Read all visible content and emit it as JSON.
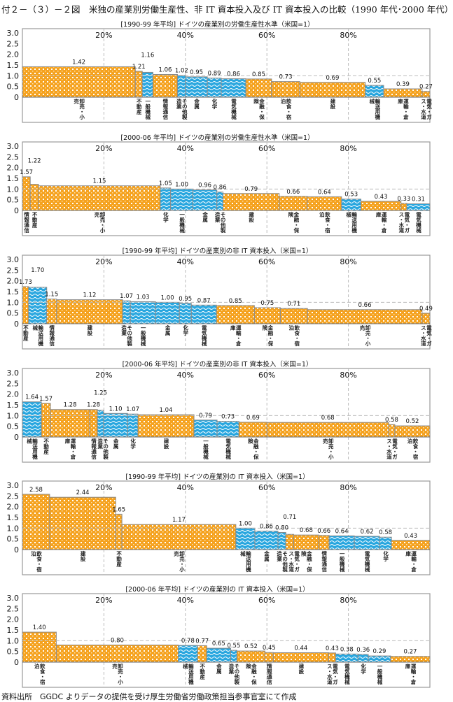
{
  "title": "付２－（３）－２図　米独の産業別労働生産性、非 IT 資本投入及び IT 資本投入の比較（1990 年代･2000 年代）",
  "footer": "資料出所　GGDC よりデータの提供を受け厚生労働省労働政策担当参事官室にて作成",
  "colors": {
    "manufacturing": "#2aa7df",
    "non_manufacturing": "#f5a21f",
    "border": "#8a8a8a",
    "grid": "#bbbbbb"
  },
  "blue_categories": [
    "一般機械",
    "その他製造業",
    "金属",
    "化学",
    "電気機械",
    "輸送用機械"
  ],
  "chart_data": [
    {
      "type": "bar",
      "title": "[1990-99 年平均] ドイツの産業別の労働生産性水準（米国=1）",
      "ylim": [
        0,
        3.0
      ],
      "yticks": [
        "0",
        "0.5",
        "1.0",
        "1.5",
        "2.0",
        "2.5",
        "3.0"
      ],
      "xticks": [
        "20%",
        "40%",
        "60%",
        "80%"
      ],
      "grid": "dashed at 1.0 and x 20% steps",
      "categories": [
        "卸売・小売",
        "不動産",
        "一般機械",
        "情報通信",
        "その他製造業",
        "金属",
        "化学",
        "電気機械",
        "金融・保険",
        "飲食・宿泊",
        "建設",
        "輸送用機械",
        "運輸・倉庫",
        "電気・ガス・水道"
      ],
      "values": [
        1.42,
        1.21,
        1.16,
        1.06,
        1.02,
        0.95,
        0.89,
        0.86,
        0.85,
        0.73,
        0.69,
        0.55,
        0.39,
        0.27
      ],
      "x_share_percent": [
        27.6,
        1.7,
        2.6,
        6.0,
        2.0,
        5.3,
        3.4,
        6.0,
        6.3,
        6.9,
        16.0,
        4.5,
        9.4,
        1.9
      ]
    },
    {
      "type": "bar",
      "title": "[2000-06 年平均] ドイツの産業別の労働生産性水準（米国=1）",
      "ylim": [
        0,
        3.0
      ],
      "yticks": [
        "0",
        "0.5",
        "1.0",
        "1.5",
        "2.0",
        "2.5",
        "3.0"
      ],
      "xticks": [
        "20%",
        "40%",
        "60%",
        "80%"
      ],
      "categories": [
        "情報通信",
        "不動産",
        "卸売・小売",
        "化学",
        "一般機械",
        "金属",
        "その他製造業",
        "建設",
        "金融・保険",
        "飲食・宿泊",
        "輸送用機械",
        "運輸・倉庫",
        "電気・ガス・水道",
        "電気機械"
      ],
      "values": [
        1.57,
        1.22,
        1.15,
        1.05,
        1.0,
        0.96,
        0.86,
        0.79,
        0.66,
        0.64,
        0.53,
        0.43,
        0.33,
        0.31
      ],
      "x_share_percent": [
        1.9,
        2.0,
        29.5,
        2.5,
        5.4,
        5.8,
        1.5,
        13.6,
        6.8,
        8.3,
        4.7,
        9.7,
        1.4,
        5.6
      ]
    },
    {
      "type": "bar",
      "title": "[1990-99 年平均] ドイツの産業別の非 IT 資本投入（米国=1）",
      "ylim": [
        0,
        3.0
      ],
      "yticks": [
        "0",
        "0.5",
        "1.0",
        "1.5",
        "2.0",
        "2.5",
        "3.0"
      ],
      "xticks": [
        "20%",
        "40%",
        "60%",
        "80%"
      ],
      "categories": [
        "不動産",
        "輸送用機械",
        "情報通信",
        "建設",
        "その他製造業",
        "一般機械",
        "金属",
        "化学",
        "電気機械",
        "運輸・倉庫",
        "金融・保険",
        "飲食・宿泊",
        "卸売・小売",
        "電気・ガス・水道"
      ],
      "values": [
        1.73,
        1.7,
        1.15,
        1.12,
        1.07,
        1.03,
        1.0,
        0.95,
        0.87,
        0.85,
        0.75,
        0.71,
        0.66,
        0.49
      ],
      "x_share_percent": [
        1.5,
        4.4,
        2.4,
        16.0,
        1.9,
        6.1,
        5.8,
        2.9,
        6.1,
        9.2,
        6.3,
        6.6,
        27.8,
        1.9
      ]
    },
    {
      "type": "bar",
      "title": "[2000-06 年平均] ドイツの産業別の非 IT 資本投入（米国=1）",
      "ylim": [
        0,
        3.0
      ],
      "yticks": [
        "0",
        "0.5",
        "1.0",
        "1.5",
        "2.0",
        "2.5",
        "3.0"
      ],
      "xticks": [
        "20%",
        "40%",
        "60%",
        "80%"
      ],
      "categories": [
        "輸送用機械",
        "不動産",
        "運輸・倉庫",
        "情報通信",
        "その他製造業",
        "金属",
        "化学",
        "建設",
        "一般機械",
        "電気機械",
        "金融・保険",
        "卸売・小売",
        "電気・ガス・水道",
        "飲食・宿泊"
      ],
      "values": [
        1.64,
        1.57,
        1.28,
        1.28,
        1.25,
        1.1,
        1.07,
        1.04,
        0.79,
        0.73,
        0.69,
        0.68,
        0.58,
        0.52
      ],
      "x_share_percent": [
        4.6,
        2.2,
        9.5,
        1.9,
        1.5,
        5.8,
        2.5,
        13.6,
        5.6,
        5.3,
        6.8,
        29.5,
        1.5,
        8.5
      ]
    },
    {
      "type": "bar",
      "title": "[1990-99 年平均] ドイツの産業別の IT 資本投入（米国=1）",
      "ylim": [
        0,
        3.0
      ],
      "yticks": [
        "0",
        "0.5",
        "1.0",
        "1.5",
        "2.0",
        "2.5",
        "3.0"
      ],
      "xticks": [
        "20%",
        "40%",
        "60%",
        "80%"
      ],
      "categories": [
        "飲食・宿泊",
        "建設",
        "不動産",
        "卸売・小売",
        "輸送用機械",
        "金属",
        "その他製造業",
        "電気・ガス・水道",
        "金融・保険",
        "情報通信",
        "一般機械",
        "電気機械",
        "化学",
        "運輸・倉庫"
      ],
      "values": [
        2.58,
        2.44,
        1.65,
        1.17,
        1.0,
        0.86,
        0.8,
        0.71,
        0.68,
        0.66,
        0.64,
        0.62,
        0.58,
        0.43
      ],
      "x_share_percent": [
        6.6,
        16.0,
        1.5,
        27.6,
        4.6,
        5.6,
        1.9,
        1.9,
        6.1,
        2.5,
        6.1,
        6.1,
        2.9,
        9.3
      ]
    },
    {
      "type": "bar",
      "title": "[2000-06 年平均] ドイツの産業別の IT 資本投入（米国=1）",
      "ylim": [
        0,
        3.0
      ],
      "yticks": [
        "0",
        "0.5",
        "1.0",
        "1.5",
        "2.0",
        "2.5",
        "3.0"
      ],
      "xticks": [
        "20%",
        "40%",
        "60%",
        "80%"
      ],
      "categories": [
        "飲食・宿泊",
        "卸売・小売",
        "輸送用機械",
        "不動産",
        "金属",
        "その他製造業",
        "金融・保険",
        "情報通信",
        "建設",
        "電気・ガス・水道",
        "電気機械",
        "化学",
        "一般機械",
        "運輸・倉庫"
      ],
      "values": [
        1.4,
        0.8,
        0.78,
        0.77,
        0.65,
        0.55,
        0.52,
        0.45,
        0.44,
        0.43,
        0.38,
        0.36,
        0.29,
        0.27
      ],
      "x_share_percent": [
        8.2,
        29.5,
        4.7,
        2.2,
        5.8,
        1.5,
        6.8,
        2.0,
        13.4,
        1.7,
        5.4,
        2.5,
        5.4,
        9.5
      ]
    }
  ]
}
